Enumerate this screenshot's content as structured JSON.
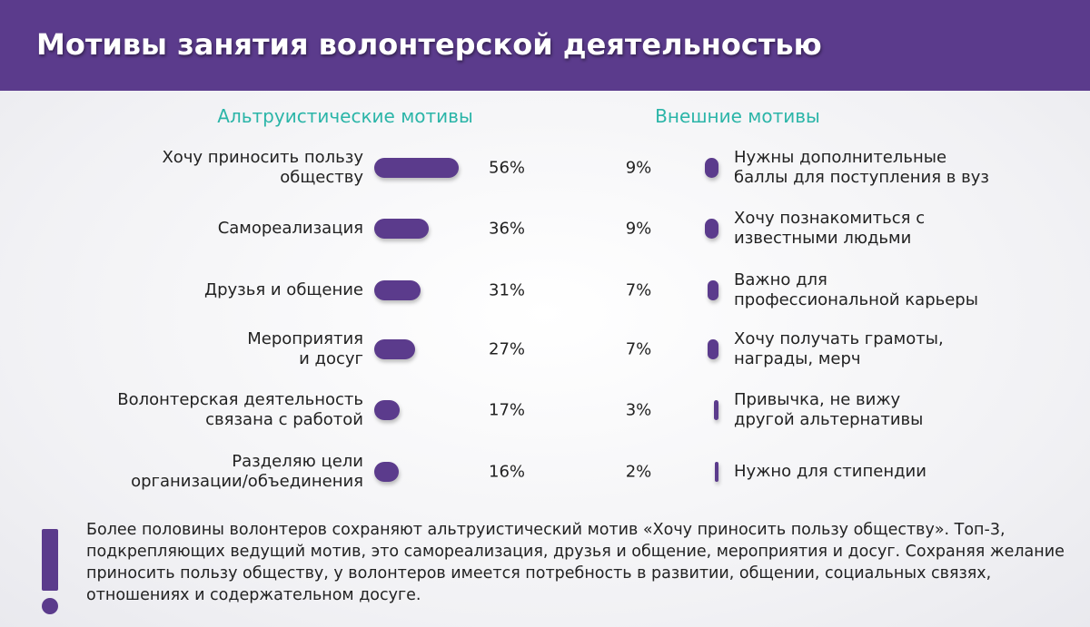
{
  "title": "Мотивы занятия волонтерской деятельностью",
  "chart_data": [
    {
      "type": "bar",
      "title": "Альтруистические мотивы",
      "categories": [
        "Хочу приносить пользу\nобществу",
        "Самореализация",
        "Друзья и общение",
        "Мероприятия\nи досуг",
        "Волонтерская деятельность\nсвязана с работой",
        "Разделяю цели\nорганизации/объединения"
      ],
      "values": [
        56,
        36,
        31,
        27,
        17,
        16
      ],
      "value_labels": [
        "56%",
        "36%",
        "31%",
        "27%",
        "17%",
        "16%"
      ],
      "color": "#5b3b8c"
    },
    {
      "type": "bar",
      "title": "Внешние мотивы",
      "categories": [
        "Нужны дополнительные\nбаллы для поступления в вуз",
        "Хочу познакомиться с\nизвестными людьми",
        "Важно для\nпрофессиональной карьеры",
        "Хочу получать грамоты,\nнаграды, мерч",
        "Привычка, не вижу\nдругой альтернативы",
        "Нужно для стипендии"
      ],
      "values": [
        9,
        9,
        7,
        7,
        3,
        2
      ],
      "value_labels": [
        "9%",
        "9%",
        "7%",
        "7%",
        "3%",
        "2%"
      ],
      "color": "#5b3b8c"
    }
  ],
  "note": "Более половины волонтеров сохраняют альтруистический мотив «Хочу приносить пользу обществу». Топ-3, подкрепляющих ведущий мотив, это самореализация, друзья и общение, мероприятия и досуг. Сохраняя желание приносить пользу обществу, у волонтеров имеется потребность в развитии, общении, социальных связях, отношениях и содержательном досуге."
}
